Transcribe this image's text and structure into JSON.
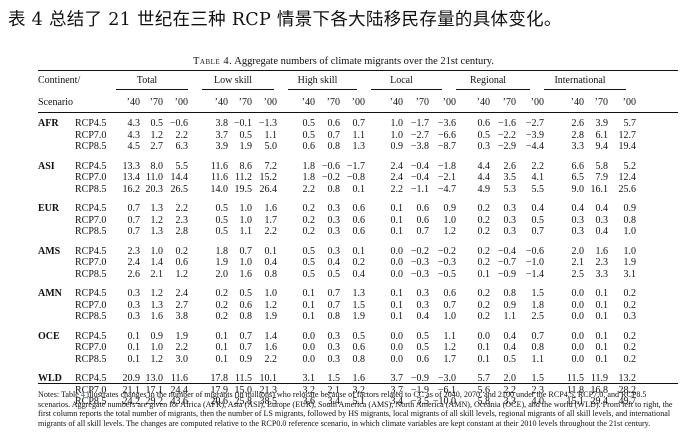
{
  "intro_text": "表 4 总结了 21 世纪在三种 RCP 情景下各大陆移民存量的具体变化。",
  "caption": {
    "label": "Table 4.",
    "text": "Aggregate numbers of climate migrants over the 21st century."
  },
  "headers": {
    "continent": "Continent/",
    "scenario": "Scenario",
    "groups": [
      "Total",
      "Low skill",
      "High skill",
      "Local",
      "Regional",
      "International"
    ],
    "years": [
      "’40",
      "’70",
      "’00"
    ]
  },
  "blocks": [
    {
      "region": "AFR",
      "rows": [
        {
          "scenario": "RCP4.5",
          "values": [
            "4.3",
            "0.5",
            "−0.6",
            "3.8",
            "−0.1",
            "−1.3",
            "0.5",
            "0.6",
            "0.7",
            "1.0",
            "−1.7",
            "−3.6",
            "0.6",
            "−1.6",
            "−2.7",
            "2.6",
            "3.9",
            "5.7"
          ]
        },
        {
          "scenario": "RCP7.0",
          "values": [
            "4.3",
            "1.2",
            "2.2",
            "3.7",
            "0.5",
            "1.1",
            "0.5",
            "0.7",
            "1.1",
            "1.0",
            "−2.7",
            "−6.6",
            "0.5",
            "−2.2",
            "−3.9",
            "2.8",
            "6.1",
            "12.7"
          ]
        },
        {
          "scenario": "RCP8.5",
          "values": [
            "4.5",
            "2.7",
            "6.3",
            "3.9",
            "1.9",
            "5.0",
            "0.6",
            "0.8",
            "1.3",
            "0.9",
            "−3.8",
            "−8.7",
            "0.3",
            "−2.9",
            "−4.4",
            "3.3",
            "9.4",
            "19.4"
          ]
        }
      ]
    },
    {
      "region": "ASI",
      "rows": [
        {
          "scenario": "RCP4.5",
          "values": [
            "13.3",
            "8.0",
            "5.5",
            "11.6",
            "8.6",
            "7.2",
            "1.8",
            "−0.6",
            "−1.7",
            "2.4",
            "−0.4",
            "−1.8",
            "4.4",
            "2.6",
            "2.2",
            "6.6",
            "5.8",
            "5.2"
          ]
        },
        {
          "scenario": "RCP7.0",
          "values": [
            "13.4",
            "11.0",
            "14.4",
            "11.6",
            "11.2",
            "15.2",
            "1.8",
            "−0.2",
            "−0.8",
            "2.4",
            "−0.4",
            "−2.1",
            "4.4",
            "3.5",
            "4.1",
            "6.5",
            "7.9",
            "12.4"
          ]
        },
        {
          "scenario": "RCP8.5",
          "values": [
            "16.2",
            "20.3",
            "26.5",
            "14.0",
            "19.5",
            "26.4",
            "2.2",
            "0.8",
            "0.1",
            "2.2",
            "−1.1",
            "−4.7",
            "4.9",
            "5.3",
            "5.5",
            "9.0",
            "16.1",
            "25.6"
          ]
        }
      ]
    },
    {
      "region": "EUR",
      "rows": [
        {
          "scenario": "RCP4.5",
          "values": [
            "0.7",
            "1.3",
            "2.2",
            "0.5",
            "1.0",
            "1.6",
            "0.2",
            "0.3",
            "0.6",
            "0.1",
            "0.6",
            "0.9",
            "0.2",
            "0.3",
            "0.4",
            "0.4",
            "0.4",
            "0.9"
          ]
        },
        {
          "scenario": "RCP7.0",
          "values": [
            "0.7",
            "1.2",
            "2.3",
            "0.5",
            "1.0",
            "1.7",
            "0.2",
            "0.3",
            "0.6",
            "0.1",
            "0.6",
            "1.0",
            "0.2",
            "0.3",
            "0.5",
            "0.3",
            "0.3",
            "0.8"
          ]
        },
        {
          "scenario": "RCP8.5",
          "values": [
            "0.7",
            "1.3",
            "2.8",
            "0.5",
            "1.1",
            "2.2",
            "0.2",
            "0.3",
            "0.6",
            "0.1",
            "0.7",
            "1.2",
            "0.2",
            "0.3",
            "0.7",
            "0.3",
            "0.4",
            "1.0"
          ]
        }
      ]
    },
    {
      "region": "AMS",
      "rows": [
        {
          "scenario": "RCP4.5",
          "values": [
            "2.3",
            "1.0",
            "0.2",
            "1.8",
            "0.7",
            "0.1",
            "0.5",
            "0.3",
            "0.1",
            "0.0",
            "−0.2",
            "−0.2",
            "0.2",
            "−0.4",
            "−0.6",
            "2.0",
            "1.6",
            "1.0"
          ]
        },
        {
          "scenario": "RCP7.0",
          "values": [
            "2.4",
            "1.4",
            "0.6",
            "1.9",
            "1.0",
            "0.4",
            "0.5",
            "0.4",
            "0.2",
            "0.0",
            "−0.3",
            "−0.3",
            "0.2",
            "−0.7",
            "−1.0",
            "2.1",
            "2.3",
            "1.9"
          ]
        },
        {
          "scenario": "RCP8.5",
          "values": [
            "2.6",
            "2.1",
            "1.2",
            "2.0",
            "1.6",
            "0.8",
            "0.5",
            "0.5",
            "0.4",
            "0.0",
            "−0.3",
            "−0.5",
            "0.1",
            "−0.9",
            "−1.4",
            "2.5",
            "3.3",
            "3.1"
          ]
        }
      ]
    },
    {
      "region": "AMN",
      "rows": [
        {
          "scenario": "RCP4.5",
          "values": [
            "0.3",
            "1.2",
            "2.4",
            "0.2",
            "0.5",
            "1.0",
            "0.1",
            "0.7",
            "1.3",
            "0.1",
            "0.3",
            "0.6",
            "0.2",
            "0.8",
            "1.5",
            "0.0",
            "0.1",
            "0.2"
          ]
        },
        {
          "scenario": "RCP7.0",
          "values": [
            "0.3",
            "1.3",
            "2.7",
            "0.2",
            "0.6",
            "1.2",
            "0.1",
            "0.7",
            "1.5",
            "0.1",
            "0.3",
            "0.7",
            "0.2",
            "0.9",
            "1.8",
            "0.0",
            "0.1",
            "0.2"
          ]
        },
        {
          "scenario": "RCP8.5",
          "values": [
            "0.3",
            "1.6",
            "3.8",
            "0.2",
            "0.8",
            "1.9",
            "0.1",
            "0.8",
            "1.9",
            "0.1",
            "0.4",
            "1.0",
            "0.2",
            "1.1",
            "2.5",
            "0.0",
            "0.1",
            "0.3"
          ]
        }
      ]
    },
    {
      "region": "OCE",
      "rows": [
        {
          "scenario": "RCP4.5",
          "values": [
            "0.1",
            "0.9",
            "1.9",
            "0.1",
            "0.7",
            "1.4",
            "0.0",
            "0.3",
            "0.5",
            "0.0",
            "0.5",
            "1.1",
            "0.0",
            "0.4",
            "0.7",
            "0.0",
            "0.1",
            "0.2"
          ]
        },
        {
          "scenario": "RCP7.0",
          "values": [
            "0.1",
            "1.0",
            "2.2",
            "0.1",
            "0.7",
            "1.6",
            "0.0",
            "0.3",
            "0.6",
            "0.0",
            "0.5",
            "1.2",
            "0.1",
            "0.4",
            "0.8",
            "0.0",
            "0.1",
            "0.2"
          ]
        },
        {
          "scenario": "RCP8.5",
          "values": [
            "0.1",
            "1.2",
            "3.0",
            "0.1",
            "0.9",
            "2.2",
            "0.0",
            "0.3",
            "0.8",
            "0.0",
            "0.6",
            "1.7",
            "0.1",
            "0.5",
            "1.1",
            "0.0",
            "0.1",
            "0.2"
          ]
        }
      ]
    },
    {
      "region": "WLD",
      "rows": [
        {
          "scenario": "RCP4.5",
          "values": [
            "20.9",
            "13.0",
            "11.6",
            "17.8",
            "11.5",
            "10.1",
            "3.1",
            "1.5",
            "1.6",
            "3.7",
            "−0.9",
            "−3.0",
            "5.7",
            "2.0",
            "1.5",
            "11.5",
            "11.9",
            "13.2"
          ]
        },
        {
          "scenario": "RCP7.0",
          "values": [
            "21.1",
            "17.1",
            "24.4",
            "17.9",
            "15.0",
            "21.3",
            "3.2",
            "2.1",
            "3.2",
            "3.7",
            "−1.9",
            "−6.1",
            "5.6",
            "2.2",
            "2.3",
            "11.8",
            "16.8",
            "28.2"
          ]
        },
        {
          "scenario": "RCP8.5",
          "values": [
            "24.2",
            "29.2",
            "43.6",
            "20.6",
            "25.8",
            "38.5",
            "3.6",
            "3.4",
            "5.1",
            "3.4",
            "−3.5",
            "−10.0",
            "5.8",
            "3.3",
            "4.0",
            "15.1",
            "29.4",
            "49.7"
          ]
        }
      ]
    }
  ],
  "notes": {
    "n1": "Notes: Table ",
    "table_ref": "4",
    "n2": " illustrates changes in the number of migrants (in millions) who relocate because of factors related to CC as of 2040, 2070, and 2100 under the RCP4.5, RCP7.0, and RCP8.5 scenarios. Aggregate numbers are given for Africa (AFR), Asia (ASI), Europe (EUR), South America (AMS), North America (AMN), Oceania (OCE), and the world (WLD). From left to right, the first column reports the total number of migrants, then the number of LS migrants, followed by HS migrants, local migrants of all skill levels, regional migrants of all skill levels, and international migrants of all skill levels. The changes are computed relative to the RCP0.0 reference scenario, in which climate variables are kept constant at their 2010 levels throughout the 21st century."
  }
}
